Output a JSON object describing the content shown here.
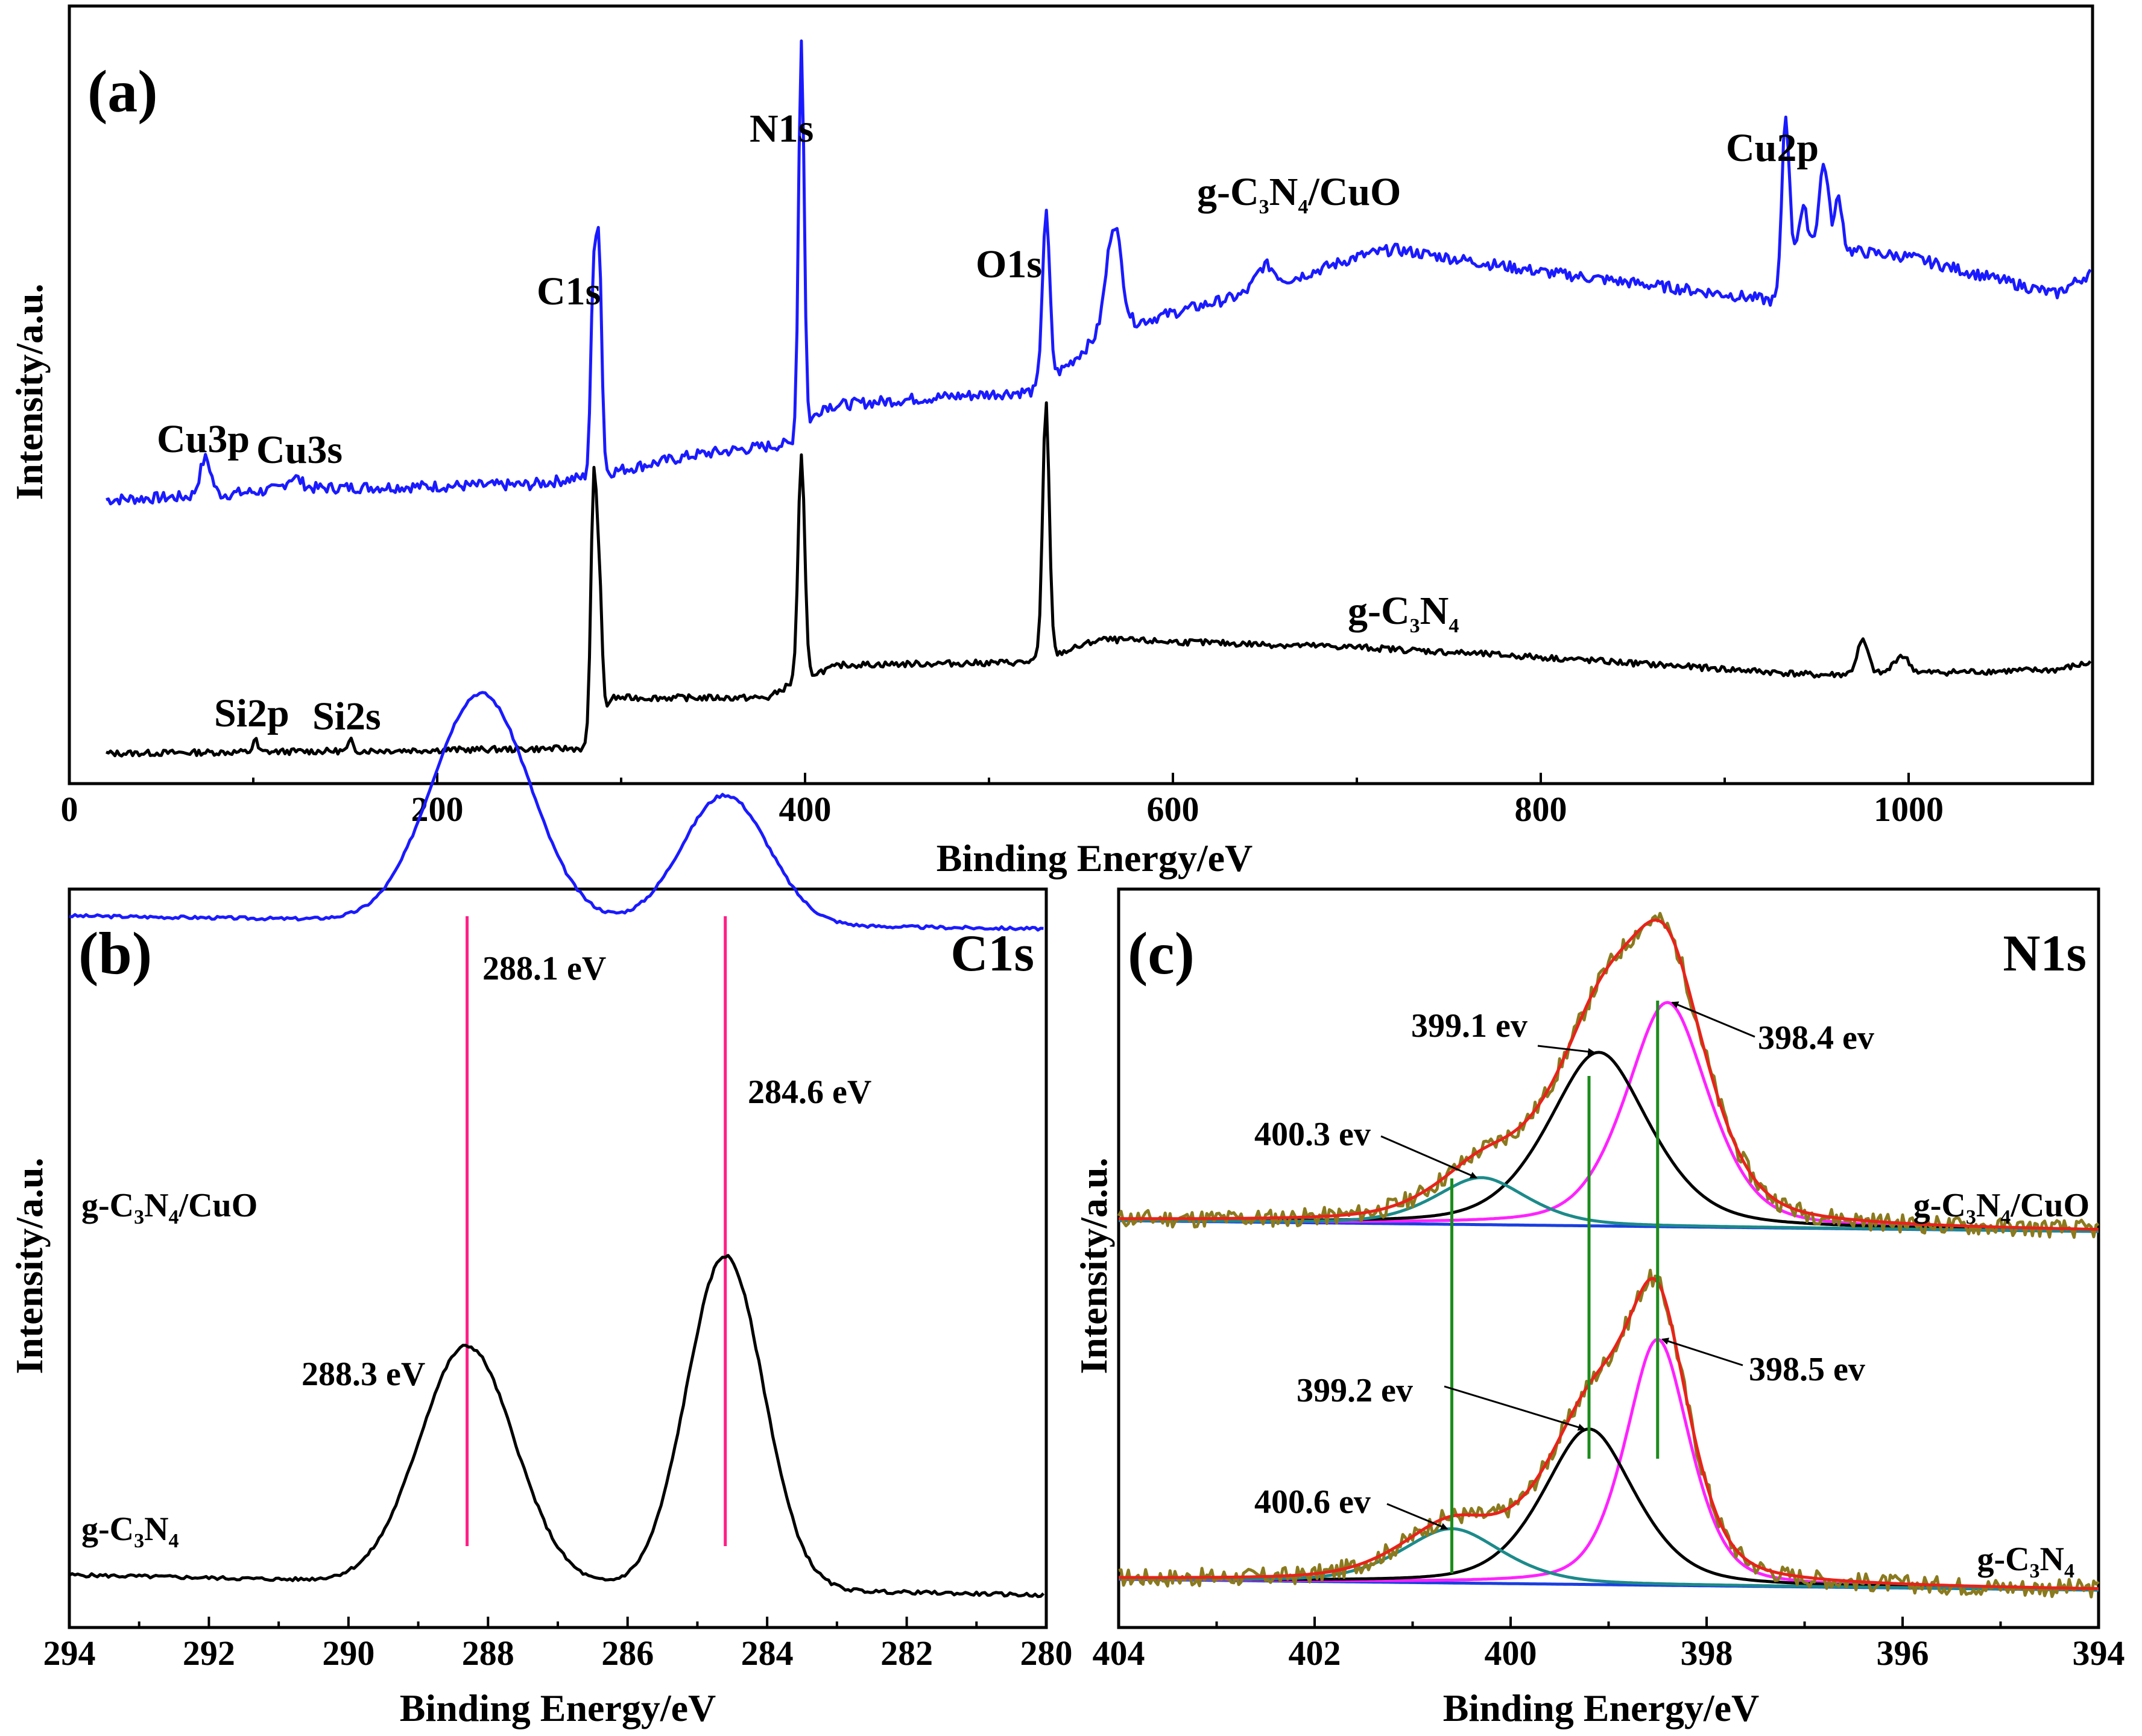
{
  "colors": {
    "gcn_cuo": "#1a1aff",
    "gcn": "#000000",
    "fit_envelope": "#e8231a",
    "raw_data": "#8a7a1e",
    "peak_398": "#ff22ff",
    "peak_399": "#000000",
    "peak_400": "#1c8a8a",
    "background": "#1a3fe0",
    "ref_line_c1s": "#ff1f86",
    "ref_line_n1s": "#1c8c1c"
  },
  "chart_data": [
    {
      "id": "a",
      "type": "line",
      "panel_label": "(a)",
      "xlabel": "Binding Energy/eV",
      "ylabel": "Intensity/a.u.",
      "xlim": [
        0,
        1100
      ],
      "xticks": [
        0,
        200,
        400,
        600,
        800,
        1000
      ],
      "xtick_labels": [
        "0",
        "200",
        "400",
        "600",
        "800",
        "1000"
      ],
      "series": [
        {
          "name": "g-C3N4/CuO",
          "label_main": "g-C",
          "label_sub1": "3",
          "label_mid": "N",
          "label_sub2": "4",
          "label_tail": "/CuO",
          "baseline": [
            [
              20,
              0.05
            ],
            [
              75,
              0.06
            ],
            [
              120,
              0.08
            ],
            [
              250,
              0.09
            ],
            [
              280,
              0.11
            ],
            [
              340,
              0.17
            ],
            [
              392,
              0.2
            ],
            [
              410,
              0.3
            ],
            [
              460,
              0.32
            ],
            [
              525,
              0.34
            ],
            [
              545,
              0.42
            ],
            [
              562,
              0.5
            ],
            [
              600,
              0.55
            ],
            [
              640,
              0.6
            ],
            [
              700,
              0.7
            ],
            [
              720,
              0.72
            ],
            [
              800,
              0.66
            ],
            [
              900,
              0.6
            ],
            [
              930,
              0.58
            ],
            [
              940,
              0.75
            ],
            [
              960,
              0.72
            ],
            [
              1000,
              0.7
            ],
            [
              1080,
              0.6
            ],
            [
              1100,
              0.66
            ]
          ],
          "peaks": [
            [
              74,
              0.1,
              3
            ],
            [
              122,
              0.03,
              4
            ],
            [
              285,
              0.5,
              1.5
            ],
            [
              288,
              0.58,
              1.5
            ],
            [
              398,
              1.05,
              1.5
            ],
            [
              531,
              0.45,
              2
            ],
            [
              568,
              0.28,
              4
            ],
            [
              650,
              0.06,
              5
            ],
            [
              933,
              0.45,
              2
            ],
            [
              943,
              0.08,
              2
            ],
            [
              954,
              0.22,
              2.5
            ],
            [
              962,
              0.14,
              2
            ]
          ],
          "noise": 0.015
        },
        {
          "name": "g-C3N4",
          "label_main": "g-C",
          "label_sub1": "3",
          "label_mid": "N",
          "label_sub2": "4",
          "label_tail": "",
          "baseline": [
            [
              20,
              0.0
            ],
            [
              280,
              0.02
            ],
            [
              295,
              0.22
            ],
            [
              380,
              0.22
            ],
            [
              398,
              0.3
            ],
            [
              420,
              0.35
            ],
            [
              520,
              0.36
            ],
            [
              540,
              0.4
            ],
            [
              560,
              0.45
            ],
            [
              700,
              0.42
            ],
            [
              800,
              0.38
            ],
            [
              950,
              0.31
            ],
            [
              1080,
              0.33
            ],
            [
              1100,
              0.36
            ]
          ],
          "peaks": [
            [
              101,
              0.05,
              1.2
            ],
            [
              153,
              0.04,
              1.2
            ],
            [
              285,
              0.95,
              1.5
            ],
            [
              288,
              0.55,
              1.5
            ],
            [
              398,
              0.87,
              1.8
            ],
            [
              531,
              1.0,
              1.8
            ],
            [
              975,
              0.13,
              3
            ],
            [
              996,
              0.07,
              4
            ]
          ],
          "noise": 0.012
        }
      ],
      "annotations": [
        "Cu3p",
        "Cu3s",
        "C1s",
        "N1s",
        "O1s",
        "Cu2p",
        "Si2p",
        "Si2s"
      ]
    },
    {
      "id": "b",
      "type": "line",
      "panel_label": "(b)",
      "title": "C1s",
      "xlabel": "Binding Energy/eV",
      "ylabel": "Intensity/a.u.",
      "xlim": [
        294,
        280
      ],
      "xticks": [
        294,
        292,
        290,
        288,
        286,
        284,
        282,
        280
      ],
      "xtick_labels": [
        "294",
        "292",
        "290",
        "288",
        "286",
        "284",
        "282",
        "280"
      ],
      "series": [
        {
          "name": "g-C3N4/CuO",
          "label_main": "g-C",
          "label_sub1": "3",
          "label_mid": "N",
          "label_sub2": "4",
          "label_tail": "/CuO",
          "baseline_start": 1.42,
          "baseline_end": 1.37,
          "peaks": [
            [
              288.1,
              0.88,
              0.7
            ],
            [
              284.6,
              0.5,
              0.62
            ]
          ]
        },
        {
          "name": "g-C3N4",
          "label_main": "g-C",
          "label_sub1": "3",
          "label_mid": "N",
          "label_sub2": "4",
          "label_tail": "",
          "baseline_start": 0.14,
          "baseline_end": 0.07,
          "peaks": [
            [
              288.3,
              0.82,
              0.68
            ],
            [
              284.6,
              1.15,
              0.55
            ]
          ]
        }
      ],
      "reference_lines": [
        288.3,
        284.6
      ],
      "annotations": [
        "288.1 eV",
        "284.6 eV",
        "288.3 eV"
      ]
    },
    {
      "id": "c",
      "type": "line",
      "panel_label": "(c)",
      "title": "N1s",
      "xlabel": "Binding Energy/eV",
      "ylabel": "Intensity/a.u.",
      "xlim": [
        404,
        394
      ],
      "xticks": [
        404,
        402,
        400,
        398,
        396,
        394
      ],
      "xtick_labels": [
        "404",
        "402",
        "400",
        "398",
        "396",
        "394"
      ],
      "series": [
        {
          "name": "g-C3N4/CuO",
          "label_main": "g-C",
          "label_sub1": "3",
          "label_mid": "N",
          "label_sub2": "4",
          "label_tail": "/CuO",
          "baseline_start": 0.0,
          "baseline_end": -0.03,
          "components": [
            {
              "center": 398.4,
              "height": 0.62,
              "width": 0.45,
              "name": "398.4 ev"
            },
            {
              "center": 399.1,
              "height": 0.48,
              "width": 0.55,
              "name": "399.1 ev"
            },
            {
              "center": 400.3,
              "height": 0.13,
              "width": 0.5,
              "name": "400.3 ev"
            }
          ]
        },
        {
          "name": "g-C3N4",
          "label_main": "g-C",
          "label_sub1": "3",
          "label_mid": "N",
          "label_sub2": "4",
          "label_tail": "",
          "baseline_start": 0.0,
          "baseline_end": -0.03,
          "components": [
            {
              "center": 398.5,
              "height": 0.68,
              "width": 0.35,
              "name": "398.5 ev"
            },
            {
              "center": 399.2,
              "height": 0.43,
              "width": 0.5,
              "name": "399.2 ev"
            },
            {
              "center": 400.6,
              "height": 0.15,
              "width": 0.55,
              "name": "400.6 ev"
            }
          ]
        }
      ],
      "reference_lines": [
        400.6,
        399.2,
        398.5
      ],
      "annotations": [
        "399.1 ev",
        "398.4 ev",
        "400.3 ev",
        "399.2 ev",
        "398.5 ev",
        "400.6 ev"
      ]
    }
  ],
  "labels": {
    "a": {
      "panel": "(a)",
      "xlabel": "Binding Energy/eV",
      "ylabel": "Intensity/a.u.",
      "cu3p": "Cu3p",
      "cu3s": "Cu3s",
      "c1s": "C1s",
      "n1s": "N1s",
      "o1s": "O1s",
      "cu2p": "Cu2p",
      "si2p": "Si2p",
      "si2s": "Si2s"
    },
    "b": {
      "panel": "(b)",
      "title": "C1s",
      "xlabel": "Binding Energy/eV",
      "ylabel": "Intensity/a.u.",
      "p1": "288.1 eV",
      "p2": "284.6 eV",
      "p3": "288.3 eV"
    },
    "c": {
      "panel": "(c)",
      "title": "N1s",
      "xlabel": "Binding Energy/eV",
      "ylabel": "Intensity/a.u.",
      "t1": "399.1 ev",
      "t2": "398.4 ev",
      "t3": "400.3 ev",
      "b1": "399.2 ev",
      "b2": "398.5 ev",
      "b3": "400.6 ev"
    }
  },
  "sample": {
    "main": "g-C",
    "sub3": "3",
    "n": "N",
    "sub4": "4",
    "cuo": "/CuO"
  }
}
